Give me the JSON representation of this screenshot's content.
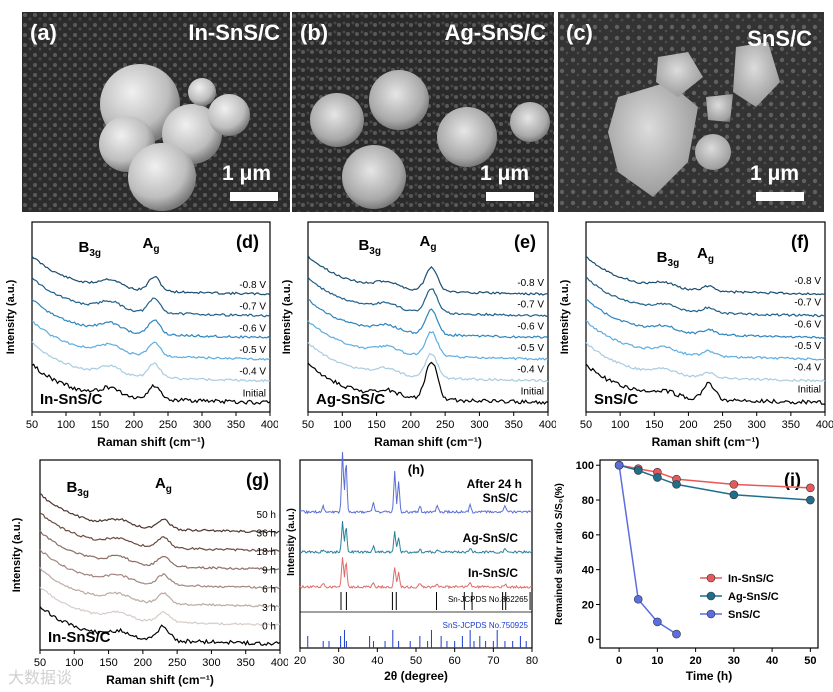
{
  "sem": [
    {
      "label": "(a)",
      "name": "In-SnS/C",
      "scale": "1 μm"
    },
    {
      "label": "(b)",
      "name": "Ag-SnS/C",
      "scale": "1 μm"
    },
    {
      "label": "(c)",
      "name": "SnS/C",
      "scale": "1 μm"
    }
  ],
  "raman_panels": [
    {
      "label": "(d)",
      "sample": "In-SnS/C",
      "curves": [
        "-0.8 V",
        "-0.7 V",
        "-0.6 V",
        "-0.5 V",
        "-0.4 V",
        "Initial"
      ],
      "peak1": "B3g",
      "peak2": "Ag"
    },
    {
      "label": "(e)",
      "sample": "Ag-SnS/C",
      "curves": [
        "-0.8 V",
        "-0.7 V",
        "-0.6 V",
        "-0.5 V",
        "-0.4 V",
        "Initial"
      ],
      "peak1": "B3g",
      "peak2": "Ag"
    },
    {
      "label": "(f)",
      "sample": "SnS/C",
      "curves": [
        "-0.8 V",
        "-0.7 V",
        "-0.6 V",
        "-0.5 V",
        "-0.4 V",
        "Initial"
      ],
      "peak1": "B3g",
      "peak2": "Ag"
    },
    {
      "label": "(g)",
      "sample": "In-SnS/C",
      "curves": [
        "50 h",
        "36 h",
        "18 h",
        "9 h",
        "6 h",
        "3 h",
        "0 h"
      ],
      "peak1": "B3g",
      "peak2": "Ag"
    }
  ],
  "raman_axis": {
    "xlabel": "Raman shift (cm⁻¹)",
    "ylabel": "Intensity (a.u.)",
    "ticks": [
      "50",
      "100",
      "150",
      "200",
      "250",
      "300",
      "350",
      "400"
    ]
  },
  "xrd": {
    "label": "(h)",
    "title": "After 24 h",
    "curves": [
      "SnS/C",
      "Ag-SnS/C",
      "In-SnS/C"
    ],
    "ref1": "Sn-JCPDS No.862265",
    "ref2": "SnS-JCPDS No.750925",
    "xlabel": "2θ (degree)",
    "ylabel": "Intensity (a.u.)",
    "ticks": [
      "20",
      "30",
      "40",
      "50",
      "60",
      "70",
      "80"
    ]
  },
  "chart_data": {
    "type": "line",
    "label": "(i)",
    "xlabel": "Time (h)",
    "ylabel": "Remained sulfur ratio S/S₀(%)",
    "xlim": [
      -5,
      52
    ],
    "ylim": [
      -5,
      103
    ],
    "xticks": [
      "0",
      "10",
      "20",
      "30",
      "40",
      "50"
    ],
    "yticks": [
      "0",
      "20",
      "40",
      "60",
      "80",
      "100"
    ],
    "legend_position": "bottom-right",
    "series": [
      {
        "name": "In-SnS/C",
        "color": "#e8585a",
        "x": [
          0,
          5,
          10,
          15,
          30,
          50
        ],
        "y": [
          100,
          98,
          96,
          92,
          89,
          87
        ]
      },
      {
        "name": "Ag-SnS/C",
        "color": "#1f6e8c",
        "x": [
          0,
          5,
          10,
          15,
          30,
          50
        ],
        "y": [
          100,
          97,
          93,
          89,
          83,
          80
        ]
      },
      {
        "name": "SnS/C",
        "color": "#5a6ee0",
        "x": [
          0,
          5,
          10,
          15
        ],
        "y": [
          100,
          23,
          10,
          3
        ]
      }
    ]
  },
  "watermark": "大数据谈"
}
